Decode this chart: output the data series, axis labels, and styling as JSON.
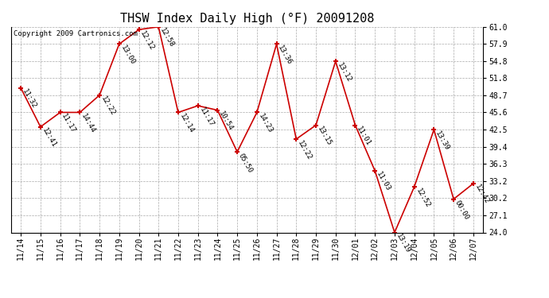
{
  "title": "THSW Index Daily High (°F) 20091208",
  "copyright": "Copyright 2009 Cartronics.com",
  "x_labels": [
    "11/14",
    "11/15",
    "11/16",
    "11/17",
    "11/18",
    "11/19",
    "11/20",
    "11/21",
    "11/22",
    "11/23",
    "11/24",
    "11/25",
    "11/26",
    "11/27",
    "11/28",
    "11/29",
    "11/30",
    "12/01",
    "12/02",
    "12/03",
    "12/04",
    "12/05",
    "12/06",
    "12/07"
  ],
  "y_values": [
    50.0,
    43.0,
    45.6,
    45.6,
    48.7,
    57.9,
    60.5,
    61.0,
    45.6,
    46.8,
    46.0,
    38.5,
    45.6,
    57.9,
    40.8,
    43.3,
    54.8,
    43.3,
    35.1,
    24.0,
    32.2,
    42.5,
    30.0,
    32.8
  ],
  "time_labels": [
    "11:32",
    "12:41",
    "11:17",
    "14:44",
    "12:22",
    "13:00",
    "12:12",
    "12:58",
    "12:14",
    "11:17",
    "10:54",
    "05:50",
    "14:23",
    "13:36",
    "12:22",
    "13:15",
    "13:12",
    "11:01",
    "11:03",
    "13:19",
    "12:52",
    "13:39",
    "00:00",
    "12:42"
  ],
  "ylim": [
    24.0,
    61.0
  ],
  "yticks": [
    24.0,
    27.1,
    30.2,
    33.2,
    36.3,
    39.4,
    42.5,
    45.6,
    48.7,
    51.8,
    54.8,
    57.9,
    61.0
  ],
  "line_color": "#cc0000",
  "marker_color": "#cc0000",
  "bg_color": "#ffffff",
  "plot_bg_color": "#ffffff",
  "grid_color": "#aaaaaa",
  "title_fontsize": 11,
  "label_fontsize": 6.5,
  "tick_fontsize": 7,
  "copyright_fontsize": 6.5
}
